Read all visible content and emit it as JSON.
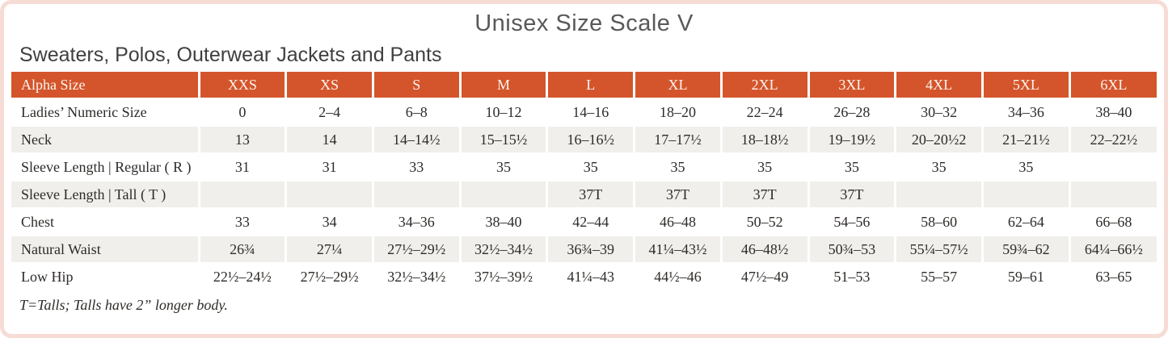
{
  "page": {
    "title": "Unisex Size Scale V",
    "subtitle": "Sweaters, Polos, Outerwear Jackets and Pants",
    "footnote": "T=Talls; Talls have 2” longer body."
  },
  "colors": {
    "header_bg": "#d4552c",
    "header_text": "#fcf5ee",
    "row_alt_bg": "#f1efec",
    "frame": "#f6dcd4",
    "title_text": "#595959",
    "subtitle_text": "#3f3f3f",
    "body_text": "#2e2b28"
  },
  "table": {
    "columns": [
      "Alpha Size",
      "XXS",
      "XS",
      "S",
      "M",
      "L",
      "XL",
      "2XL",
      "3XL",
      "4XL",
      "5XL",
      "6XL"
    ],
    "rows": [
      {
        "label": "Ladies’ Numeric Size",
        "values": [
          "0",
          "2–4",
          "6–8",
          "10–12",
          "14–16",
          "18–20",
          "22–24",
          "26–28",
          "30–32",
          "34–36",
          "38–40"
        ]
      },
      {
        "label": "Neck",
        "values": [
          "13",
          "14",
          "14–14½",
          "15–15½",
          "16–16½",
          "17–17½",
          "18–18½",
          "19–19½",
          "20–20½2",
          "21–21½",
          "22–22½"
        ]
      },
      {
        "label": "Sleeve Length | Regular ( R )",
        "values": [
          "31",
          "31",
          "33",
          "35",
          "35",
          "35",
          "35",
          "35",
          "35",
          "35",
          ""
        ]
      },
      {
        "label": "Sleeve Length | Tall ( T )",
        "values": [
          "",
          "",
          "",
          "",
          "37T",
          "37T",
          "37T",
          "37T",
          "",
          "",
          ""
        ]
      },
      {
        "label": "Chest",
        "values": [
          "33",
          "34",
          "34–36",
          "38–40",
          "42–44",
          "46–48",
          "50–52",
          "54–56",
          "58–60",
          "62–64",
          "66–68"
        ]
      },
      {
        "label": "Natural Waist",
        "values": [
          "26¾",
          "27¼",
          "27½–29½",
          "32½–34½",
          "36¾–39",
          "41¼–43½",
          "46–48½",
          "50¾–53",
          "55¼–57½",
          "59¾–62",
          "64¼–66½"
        ]
      },
      {
        "label": "Low Hip",
        "values": [
          "22½–24½",
          "27½–29½",
          "32½–34½",
          "37½–39½",
          "41¼–43",
          "44½–46",
          "47½–49",
          "51–53",
          "55–57",
          "59–61",
          "63–65"
        ]
      }
    ]
  }
}
